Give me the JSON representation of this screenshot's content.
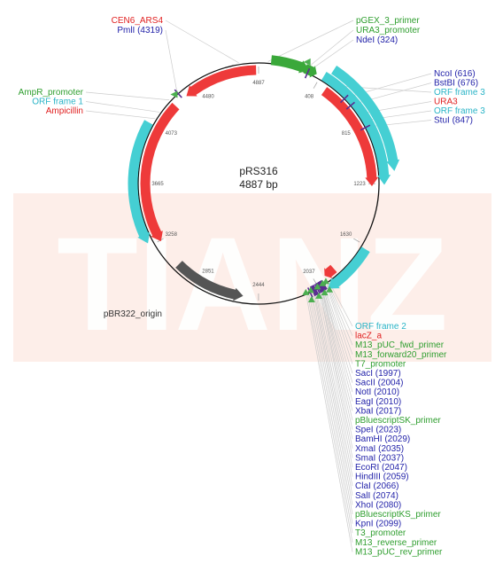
{
  "plasmid": {
    "name": "pRS316",
    "size": "4887 bp",
    "total_bp": 4887
  },
  "watermark": {
    "text": "TIANZ",
    "band_color": "#fdeee9"
  },
  "ticks": [
    {
      "bp": 408,
      "label": "408"
    },
    {
      "bp": 815,
      "label": "815"
    },
    {
      "bp": 1223,
      "label": "1223"
    },
    {
      "bp": 1630,
      "label": "1630"
    },
    {
      "bp": 2037,
      "label": "2037"
    },
    {
      "bp": 2444,
      "label": "2444"
    },
    {
      "bp": 2851,
      "label": "2851"
    },
    {
      "bp": 3258,
      "label": "3258"
    },
    {
      "bp": 3665,
      "label": "3665"
    },
    {
      "bp": 4073,
      "label": "4073"
    },
    {
      "bp": 4480,
      "label": "4480"
    },
    {
      "bp": 4887,
      "label": "4887"
    }
  ],
  "features": [
    {
      "name": "pGEX_3_primer",
      "type": "primer",
      "start": 80,
      "end": 330,
      "track": 0,
      "color": "#3aa83a"
    },
    {
      "name": "URA3_promoter",
      "type": "promoter",
      "start": 300,
      "end": 380,
      "track": 0,
      "color": "#3aa83a"
    },
    {
      "name": "ORF frame 3 (URA3 region)",
      "type": "orf",
      "start": 425,
      "end": 1230,
      "track": 2,
      "color": "#45cfd3"
    },
    {
      "name": "ORF frame 3",
      "type": "orf",
      "start": 455,
      "end": 1150,
      "track": 3,
      "color": "#45cfd3"
    },
    {
      "name": "URA3",
      "type": "gene",
      "start": 480,
      "end": 1240,
      "track": 1,
      "color": "#ee3a3a"
    },
    {
      "name": "CEN6_ARS4",
      "type": "gene",
      "start": 4870,
      "end": 4350,
      "track": 1,
      "color": "#ee3a3a"
    },
    {
      "name": "ORF frame 1",
      "type": "orf",
      "start": 4060,
      "end": 3280,
      "track": 2,
      "color": "#45cfd3"
    },
    {
      "name": "Ampicillin",
      "type": "gene",
      "start": 4250,
      "end": 3250,
      "track": 1,
      "color": "#ee3a3a"
    },
    {
      "name": "pBR322_origin",
      "type": "origin",
      "start": 3050,
      "end": 2550,
      "track": 1,
      "color": "#555555"
    },
    {
      "name": "ORF frame 2",
      "type": "orf",
      "start": 1650,
      "end": 1990,
      "track": 2,
      "color": "#45cfd3"
    },
    {
      "name": "lacZ_a",
      "type": "gene",
      "start": 1880,
      "end": 1960,
      "track": 1,
      "color": "#ee3a3a"
    }
  ],
  "labels_top": [
    {
      "text": "CEN6_ARS4",
      "color": "#e02020",
      "bp": 4760
    },
    {
      "text": "PmlI (4319)",
      "color": "#1f1fa8",
      "bp": 4319
    },
    {
      "text": "pGEX_3_primer",
      "color": "#2e9e2e",
      "bp": 60
    },
    {
      "text": "URA3_promoter",
      "color": "#2e9e2e",
      "bp": 300
    },
    {
      "text": "NdeI (324)",
      "color": "#1f1fa8",
      "bp": 324
    }
  ],
  "labels_right": [
    {
      "text": "NcoI (616)",
      "color": "#1f1fa8",
      "bp": 616
    },
    {
      "text": "BstBI (676)",
      "color": "#1f1fa8",
      "bp": 676
    },
    {
      "text": "ORF frame 3",
      "color": "#2ab4c7",
      "bp": 500
    },
    {
      "text": "URA3",
      "color": "#e02020",
      "bp": 750
    },
    {
      "text": "ORF frame 3",
      "color": "#2ab4c7",
      "bp": 800
    },
    {
      "text": "StuI (847)",
      "color": "#1f1fa8",
      "bp": 847
    }
  ],
  "labels_left": [
    {
      "text": "AmpR_promoter",
      "color": "#2e9e2e",
      "bp": 4250
    },
    {
      "text": "ORF frame 1",
      "color": "#2ab4c7",
      "bp": 4150
    },
    {
      "text": "Ampicillin",
      "color": "#e02020",
      "bp": 4100
    },
    {
      "text": "pBR322_origin",
      "color": "#333333",
      "bp": 2850
    }
  ],
  "labels_bottom": [
    {
      "text": "ORF frame 2",
      "color": "#2ab4c7",
      "bp": 1960
    },
    {
      "text": "lacZ_a",
      "color": "#e02020",
      "bp": 1970
    },
    {
      "text": "M13_pUC_fwd_primer",
      "color": "#2e9e2e",
      "bp": 1975
    },
    {
      "text": "M13_forward20_primer",
      "color": "#2e9e2e",
      "bp": 1980
    },
    {
      "text": "T7_promoter",
      "color": "#2e9e2e",
      "bp": 1985
    },
    {
      "text": "SacI (1997)",
      "color": "#1f1fa8",
      "bp": 1997
    },
    {
      "text": "SacII (2004)",
      "color": "#1f1fa8",
      "bp": 2004
    },
    {
      "text": "NotI (2010)",
      "color": "#1f1fa8",
      "bp": 2010
    },
    {
      "text": "EagI (2010)",
      "color": "#1f1fa8",
      "bp": 2010
    },
    {
      "text": "XbaI (2017)",
      "color": "#1f1fa8",
      "bp": 2017
    },
    {
      "text": "pBluescriptSK_primer",
      "color": "#2e9e2e",
      "bp": 2020
    },
    {
      "text": "SpeI (2023)",
      "color": "#1f1fa8",
      "bp": 2023
    },
    {
      "text": "BamHI (2029)",
      "color": "#1f1fa8",
      "bp": 2029
    },
    {
      "text": "XmaI (2035)",
      "color": "#1f1fa8",
      "bp": 2035
    },
    {
      "text": "SmaI (2037)",
      "color": "#1f1fa8",
      "bp": 2037
    },
    {
      "text": "EcoRI (2047)",
      "color": "#1f1fa8",
      "bp": 2047
    },
    {
      "text": "HindIII (2059)",
      "color": "#1f1fa8",
      "bp": 2059
    },
    {
      "text": "ClaI (2066)",
      "color": "#1f1fa8",
      "bp": 2066
    },
    {
      "text": "SalI (2074)",
      "color": "#1f1fa8",
      "bp": 2074
    },
    {
      "text": "XhoI (2080)",
      "color": "#1f1fa8",
      "bp": 2080
    },
    {
      "text": "pBluescriptKS_primer",
      "color": "#2e9e2e",
      "bp": 2090
    },
    {
      "text": "KpnI (2099)",
      "color": "#1f1fa8",
      "bp": 2099
    },
    {
      "text": "T3_promoter",
      "color": "#2e9e2e",
      "bp": 2110
    },
    {
      "text": "M13_reverse_primer",
      "color": "#2e9e2e",
      "bp": 2120
    },
    {
      "text": "M13_pUC_rev_primer",
      "color": "#2e9e2e",
      "bp": 2130
    }
  ]
}
